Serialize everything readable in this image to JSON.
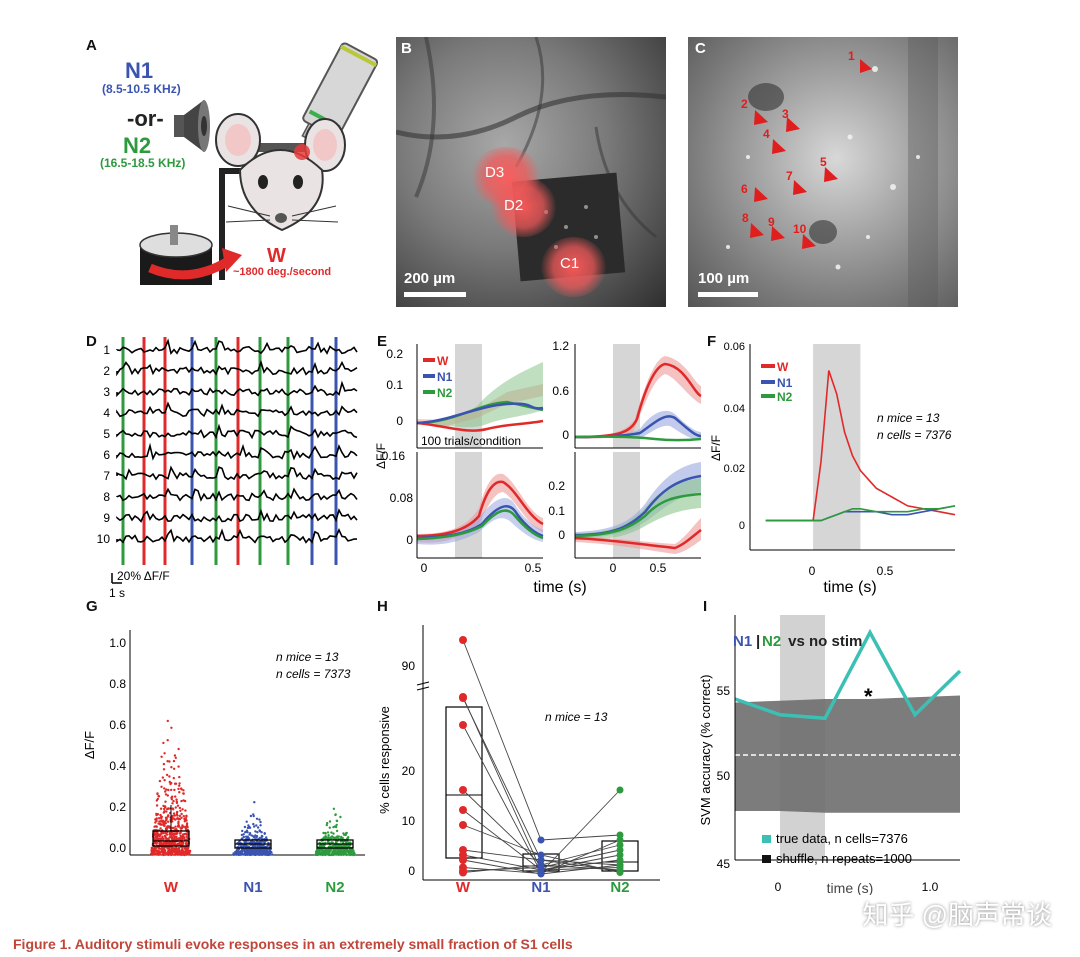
{
  "panels": {
    "A": "A",
    "B": "B",
    "C": "C",
    "D": "D",
    "E": "E",
    "F": "F",
    "G": "G",
    "H": "H",
    "I": "I"
  },
  "panel_a": {
    "n1": "N1",
    "n1_range": "(8.5-10.5 KHz)",
    "or": "-or-",
    "n2": "N2",
    "n2_range": "(16.5-18.5 KHz)",
    "w": "W",
    "w_speed": "~1800 deg./second"
  },
  "panel_b": {
    "rois": [
      "D3",
      "D2",
      "C1"
    ],
    "scale": "200 µm"
  },
  "panel_c": {
    "arrows": [
      "1",
      "2",
      "3",
      "4",
      "5",
      "6",
      "7",
      "8",
      "9",
      "10"
    ],
    "scale": "100 µm"
  },
  "colors": {
    "W": "#e02a2a",
    "N1": "#3a54b0",
    "N2": "#2e9a3e",
    "teal": "#3cc0b4",
    "shuffle": "#6e6e6e"
  },
  "panel_d": {
    "rows": [
      "1",
      "2",
      "3",
      "4",
      "5",
      "6",
      "7",
      "8",
      "9",
      "10"
    ],
    "scale_y": "20% ΔF/F",
    "scale_x": "1 s",
    "stim_order": [
      "N2",
      "W",
      "W",
      "N1",
      "N2",
      "W",
      "N2",
      "N2",
      "N1",
      "N1"
    ]
  },
  "panel_e": {
    "legend": [
      "W",
      "N1",
      "N2"
    ],
    "trials_note": "100 trials/condition",
    "ylabel": "ΔF/F",
    "xlabel": "time (s)",
    "sub1_yticks": [
      "0.2",
      "0.1",
      "0"
    ],
    "sub2_yticks": [
      "1.2",
      "0.6",
      "0"
    ],
    "sub3_yticks": [
      "0.16",
      "0.08",
      "0"
    ],
    "sub4_yticks": [
      "0.2",
      "0.1",
      "0"
    ],
    "xticks": [
      "0",
      "0.5"
    ]
  },
  "panel_f": {
    "legend": [
      "W",
      "N1",
      "N2"
    ],
    "note_mice": "n mice = 13",
    "note_cells": "n cells = 7376",
    "ylabel": "ΔF/F",
    "xlabel": "time (s)",
    "yticks": [
      "0.06",
      "0.04",
      "0.02",
      "0"
    ],
    "xticks": [
      "0",
      "0.5"
    ]
  },
  "panel_g": {
    "ylabel": "ΔF/F",
    "note_mice": "n mice = 13",
    "note_cells": "n cells = 7373",
    "yticks": [
      "1.0",
      "0.8",
      "0.6",
      "0.4",
      "0.2",
      "0.0"
    ],
    "groups": [
      "W",
      "N1",
      "N2"
    ]
  },
  "panel_h": {
    "ylabel": "% cells responsive",
    "note_mice": "n mice = 13",
    "yticks": [
      "90",
      "20",
      "10",
      "0"
    ],
    "groups": [
      "W",
      "N1",
      "N2"
    ]
  },
  "panel_i": {
    "title_n1": "N1",
    "title_sep": "|",
    "title_n2": "N2",
    "title_rest": " vs no stim",
    "ylabel": "SVM accuracy (% correct)",
    "xlabel": "time (s)",
    "yticks": [
      "55",
      "50",
      "45"
    ],
    "xticks": [
      "0",
      "1.0"
    ],
    "star": "*",
    "legend_true": "true data, n cells=7376",
    "legend_shuffle": "shuffle, n repeats=1000"
  },
  "caption": "Figure 1.  Auditory stimuli evoke responses in an extremely small fraction of S1 cells",
  "watermark": "知乎 @脑声常谈",
  "chart_data": [
    {
      "type": "line",
      "panel": "F",
      "x": [
        -0.3,
        -0.2,
        -0.1,
        0,
        0.05,
        0.1,
        0.15,
        0.2,
        0.25,
        0.3,
        0.4,
        0.5,
        0.6,
        0.7,
        0.8,
        0.9
      ],
      "series": [
        {
          "name": "W",
          "values": [
            0,
            0,
            0,
            0,
            0.02,
            0.051,
            0.043,
            0.03,
            0.022,
            0.017,
            0.011,
            0.008,
            0.005,
            0.004,
            0.003,
            0.002
          ]
        },
        {
          "name": "N1",
          "values": [
            0,
            0,
            0,
            0,
            0,
            0.001,
            0.002,
            0.003,
            0.003,
            0.003,
            0.003,
            0.002,
            0.002,
            0.003,
            0.004,
            0.005
          ]
        },
        {
          "name": "N2",
          "values": [
            0,
            0,
            0,
            0,
            0,
            0.001,
            0.002,
            0.003,
            0.004,
            0.004,
            0.003,
            0.003,
            0.003,
            0.004,
            0.004,
            0.005
          ]
        }
      ],
      "xlabel": "time (s)",
      "ylabel": "ΔF/F",
      "xlim": [
        -0.4,
        0.9
      ],
      "ylim": [
        -0.01,
        0.06
      ]
    },
    {
      "type": "line",
      "panel": "I",
      "x": [
        -0.3,
        0,
        0.3,
        0.6,
        0.9,
        1.2
      ],
      "series": [
        {
          "name": "true data",
          "values": [
            53.2,
            52.3,
            52.1,
            57.0,
            52.3,
            54.8
          ]
        }
      ],
      "shuffle_band": {
        "upper": [
          53.0,
          53.1,
          53.2,
          53.2,
          53.3,
          53.4
        ],
        "lower": [
          46.8,
          46.8,
          46.7,
          46.7,
          46.7,
          46.7
        ]
      },
      "xlabel": "time (s)",
      "ylabel": "SVM accuracy (% correct)",
      "xlim": [
        -0.3,
        1.2
      ],
      "ylim": [
        44,
        58
      ]
    }
  ]
}
